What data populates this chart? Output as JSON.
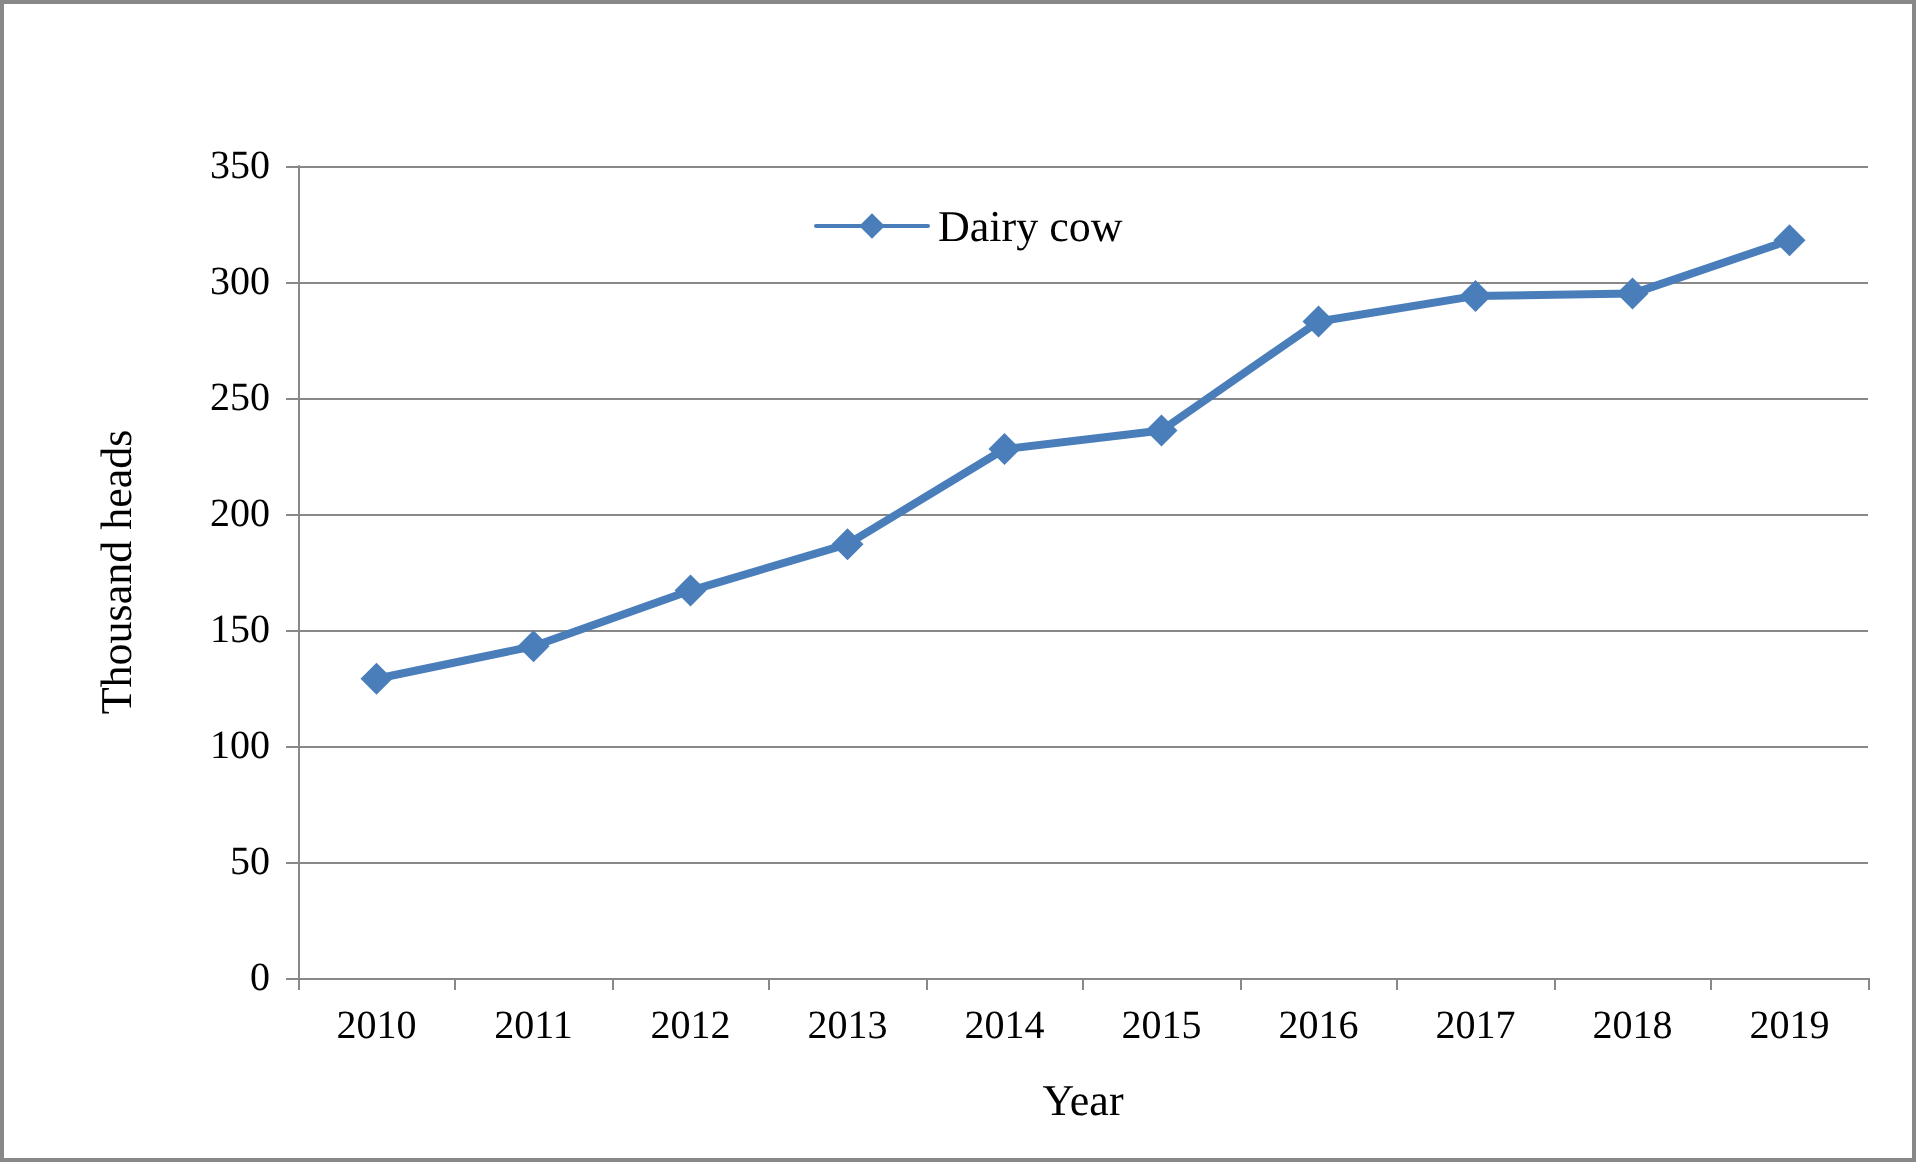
{
  "chart_data": {
    "type": "line",
    "xlabel": "Year",
    "ylabel": "Thousand heads",
    "categories": [
      "2010",
      "2011",
      "2012",
      "2013",
      "2014",
      "2015",
      "2016",
      "2017",
      "2018",
      "2019"
    ],
    "series": [
      {
        "name": "Dairy cow",
        "color": "#4a7ebb",
        "values": [
          129,
          143,
          167,
          187,
          228,
          236,
          283,
          294,
          295,
          318
        ]
      }
    ],
    "ylim": [
      0,
      350
    ],
    "yticks": [
      0,
      50,
      100,
      150,
      200,
      250,
      300,
      350
    ],
    "grid": "y",
    "legend": "top",
    "marker": "diamond",
    "line_style": "solid"
  }
}
